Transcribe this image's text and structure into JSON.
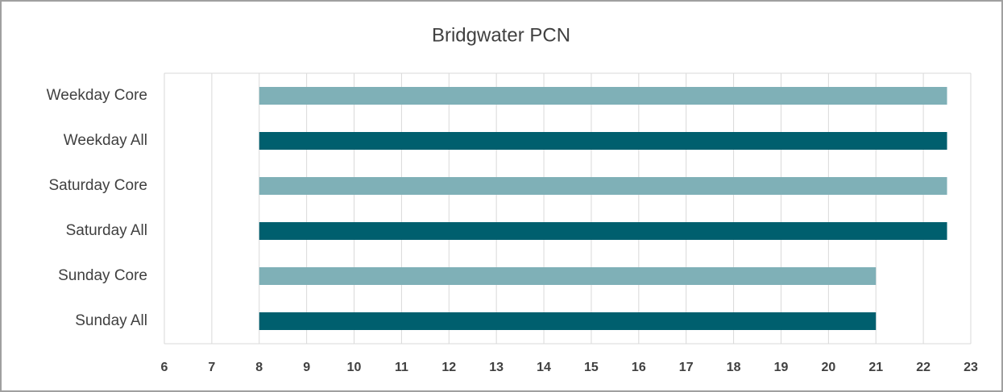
{
  "chart_data": {
    "type": "floating-bar",
    "title": "Bridgwater PCN",
    "categories": [
      "Weekday Core",
      "Weekday All",
      "Saturday Core",
      "Saturday All",
      "Sunday Core",
      "Sunday All"
    ],
    "starts": [
      8,
      8,
      8,
      8,
      8,
      8
    ],
    "ends": [
      22.5,
      22.5,
      22.5,
      22.5,
      21,
      21
    ],
    "colors": [
      "#7fb0b7",
      "#005f6e",
      "#7fb0b7",
      "#005f6e",
      "#7fb0b7",
      "#005f6e"
    ],
    "xlim": [
      6,
      23
    ],
    "xticks": [
      6,
      7,
      8,
      9,
      10,
      11,
      12,
      13,
      14,
      15,
      16,
      17,
      18,
      19,
      20,
      21,
      22,
      23
    ],
    "grid": true
  }
}
